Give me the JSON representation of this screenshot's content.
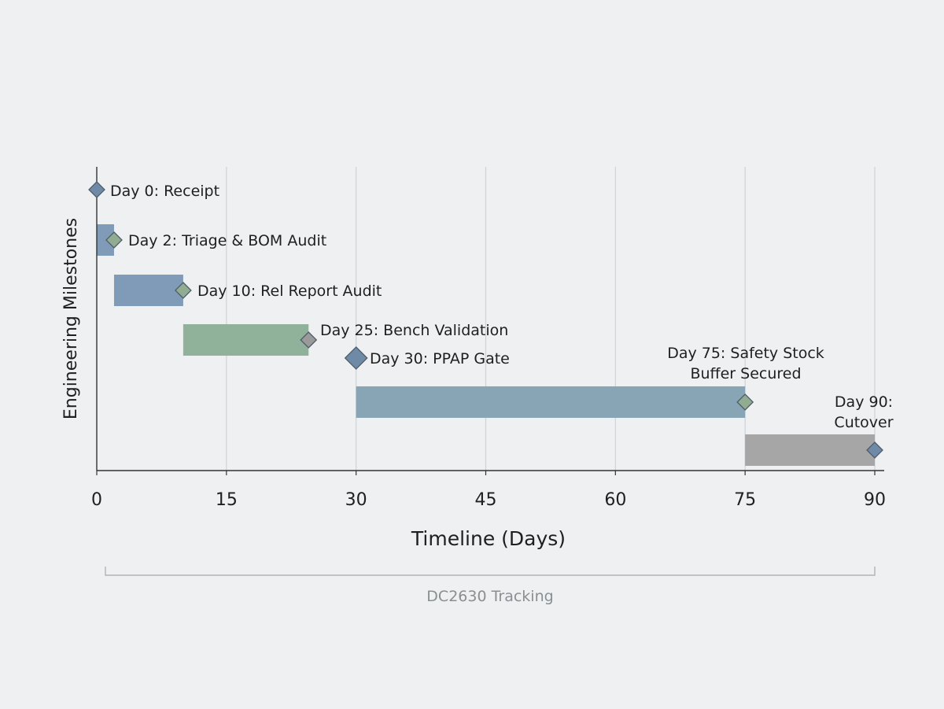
{
  "chart_data": {
    "type": "gantt",
    "xlabel": "Timeline (Days)",
    "ylabel": "Engineering Milestones",
    "xlim": [
      0,
      90
    ],
    "xticks": [
      0,
      15,
      30,
      45,
      60,
      75,
      90
    ],
    "grid": "vertical",
    "tasks": [
      {
        "start": 0,
        "end": 0,
        "milestone_day": 0,
        "label": [
          "Day 0: Receipt"
        ],
        "bar_color": null,
        "marker_color": "#6f8aa6"
      },
      {
        "start": 0,
        "end": 2,
        "milestone_day": 2,
        "label": [
          "Day 2: Triage & BOM Audit"
        ],
        "bar_color": "#7f9bb8",
        "marker_color": "#92ac92"
      },
      {
        "start": 2,
        "end": 10,
        "milestone_day": 10,
        "label": [
          "Day 10: Rel Report Audit"
        ],
        "bar_color": "#7f9bb8",
        "marker_color": "#92ac92"
      },
      {
        "start": 10,
        "end": 24.5,
        "milestone_day": 24.5,
        "label": [
          "Day 25: Bench Validation"
        ],
        "bar_color": "#91b29a",
        "marker_color": "#9a9a9a"
      },
      {
        "start": 30,
        "end": 30,
        "milestone_day": 30,
        "label": [
          "Day 30: PPAP Gate"
        ],
        "bar_color": null,
        "marker_color": "#6f8aa6"
      },
      {
        "start": 30,
        "end": 75,
        "milestone_day": 75,
        "label": [
          "Day 75: Safety Stock",
          "Buffer Secured"
        ],
        "bar_color": "#87a5b4",
        "marker_color": "#92ac92"
      },
      {
        "start": 75,
        "end": 90,
        "milestone_day": 90,
        "label": [
          "Day 90:",
          "Cutover"
        ],
        "bar_color": "#a6a6a6",
        "marker_color": "#6f8aa6"
      }
    ]
  },
  "footer": {
    "bracket_label": "DC2630 Tracking"
  },
  "colors": {
    "background": "#eef0f1",
    "grid": "#cfd3d6",
    "axis": "#333333",
    "text": "#1f1f1f",
    "bracket": "#b0b4b8",
    "bracket_text": "#8a8f94"
  }
}
